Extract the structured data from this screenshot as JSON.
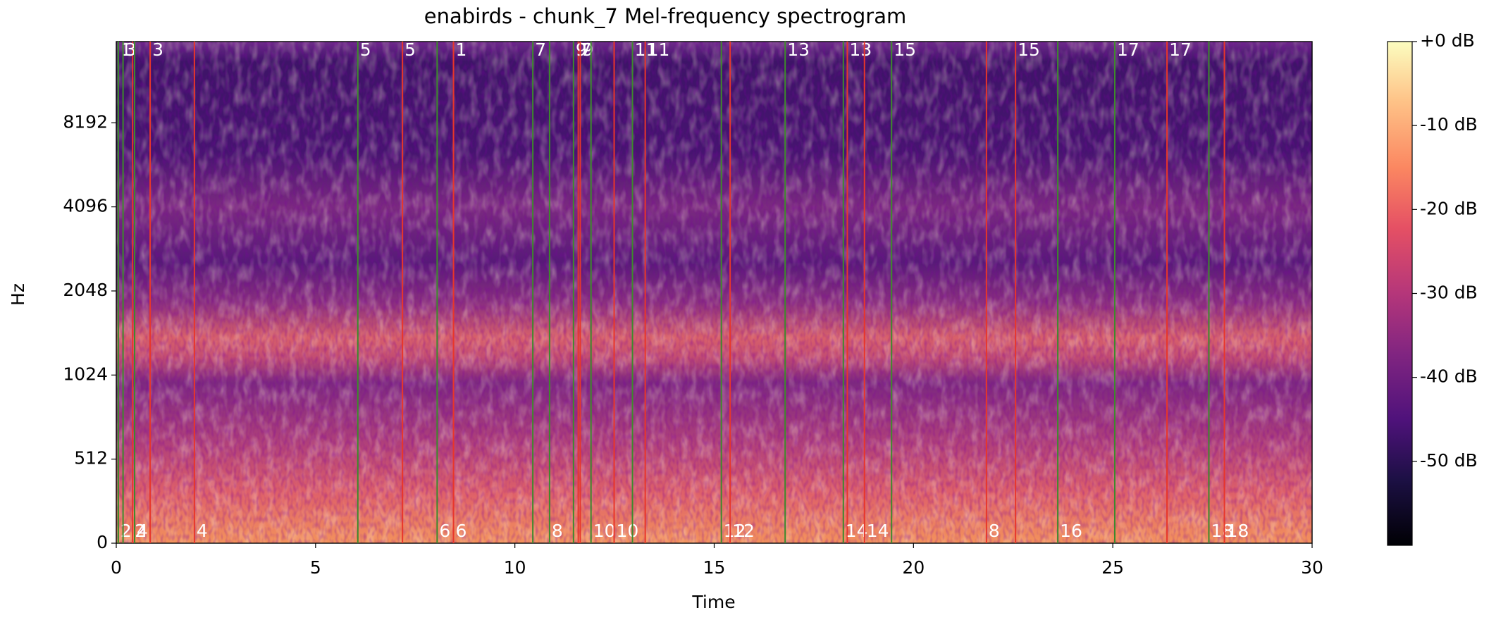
{
  "chart_data": {
    "type": "spectrogram",
    "title": "enabirds - chunk_7 Mel-frequency spectrogram",
    "xlabel": "Time",
    "ylabel": "Hz",
    "xlim": [
      0,
      30
    ],
    "xticks": [
      0,
      5,
      10,
      15,
      20,
      25,
      30
    ],
    "ylim": [
      0,
      16000
    ],
    "yscale": "symlog",
    "ybase": 2,
    "linthresh": 512,
    "yticks": [
      0,
      512,
      1024,
      2048,
      4096,
      8192
    ],
    "clim": [
      -60,
      0
    ],
    "cticks": [
      {
        "value": 0,
        "label": "+0 dB"
      },
      {
        "value": -10,
        "label": "-10 dB"
      },
      {
        "value": -20,
        "label": "-20 dB"
      },
      {
        "value": -30,
        "label": "-30 dB"
      },
      {
        "value": -40,
        "label": "-40 dB"
      },
      {
        "value": -50,
        "label": "-50 dB"
      }
    ],
    "onset_color": "#3d8a2c",
    "offset_color": "#e8362a",
    "annotations": [
      {
        "label": "1",
        "start": 0.05,
        "end": 8.46
      },
      {
        "label": "2",
        "start": 0.05,
        "end": 0.41
      },
      {
        "label": "3",
        "start": 0.17,
        "end": 0.85
      },
      {
        "label": "4",
        "start": 0.46,
        "end": 1.96
      },
      {
        "label": "5",
        "start": 6.06,
        "end": 7.18
      },
      {
        "label": "6",
        "start": 8.05,
        "end": 8.46
      },
      {
        "label": "7",
        "start": 10.45,
        "end": 11.59
      },
      {
        "label": "8",
        "start": 10.87,
        "end": 21.83
      },
      {
        "label": "9",
        "start": 11.47,
        "end": 11.64
      },
      {
        "label": "10",
        "start": 11.91,
        "end": 12.49
      },
      {
        "label": "11",
        "start": 12.95,
        "end": 13.27
      },
      {
        "label": "12",
        "start": 15.18,
        "end": 15.4
      },
      {
        "label": "13",
        "start": 16.78,
        "end": 18.34
      },
      {
        "label": "14",
        "start": 18.24,
        "end": 18.77
      },
      {
        "label": "15",
        "start": 19.45,
        "end": 22.56
      },
      {
        "label": "16",
        "start": 23.62,
        "end": null
      },
      {
        "label": "17",
        "start": 25.05,
        "end": 26.36
      },
      {
        "label": "18",
        "start": 27.41,
        "end": 27.8
      }
    ]
  }
}
